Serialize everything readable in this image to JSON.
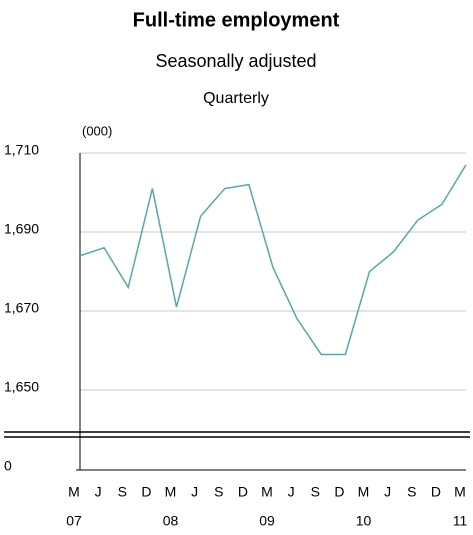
{
  "chart_data": {
    "type": "line",
    "title": "Full-time employment",
    "subtitle": "Seasonally adjusted",
    "frequency": "Quarterly",
    "unit_label": "(000)",
    "categories": [
      "M",
      "J",
      "S",
      "D",
      "M",
      "J",
      "S",
      "D",
      "M",
      "J",
      "S",
      "D",
      "M",
      "J",
      "S",
      "D",
      "M"
    ],
    "year_labels": [
      "07",
      null,
      null,
      null,
      "08",
      null,
      null,
      null,
      "09",
      null,
      null,
      null,
      "10",
      null,
      null,
      null,
      "11"
    ],
    "series": [
      {
        "name": "Full-time employment",
        "color": "#5aa6a6",
        "values": [
          1684,
          1686,
          1676,
          1701,
          1671,
          1694,
          1701,
          1702,
          1681,
          1668,
          1659,
          1659,
          1680,
          1685,
          1693,
          1697,
          1707
        ]
      }
    ],
    "ylim": [
      1640,
      1710
    ],
    "yticks": [
      {
        "value": 1650,
        "label": "1,650"
      },
      {
        "value": 1670,
        "label": "1,670"
      },
      {
        "value": 1690,
        "label": "1,690"
      },
      {
        "value": 1710,
        "label": "1,710"
      }
    ],
    "break_ticks": [
      0
    ],
    "grid": true
  }
}
